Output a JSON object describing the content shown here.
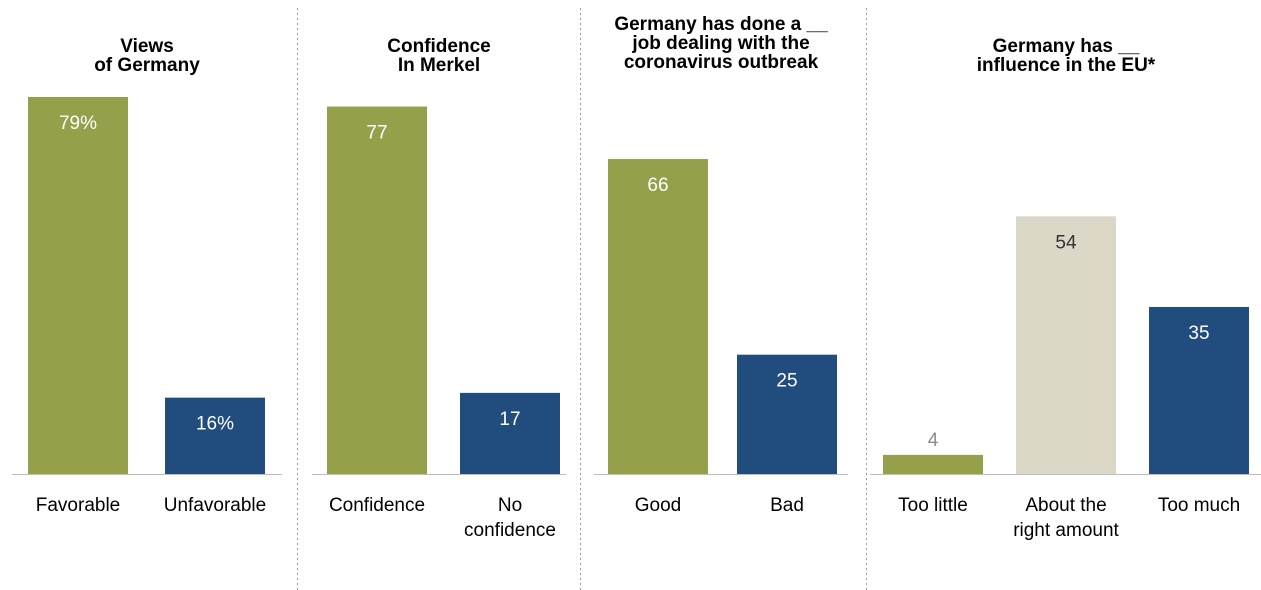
{
  "colors": {
    "green": "#96a04a",
    "blue": "#214d7e",
    "beige": "#dbd8c8",
    "label_on_dark": "#ffffff",
    "label_on_light": "#333333",
    "label_outside": "#8c8c8c"
  },
  "chart_data": [
    {
      "type": "bar",
      "title_lines": [
        "Views",
        "of Germany"
      ],
      "categories": [
        [
          "Favorable"
        ],
        [
          "Unfavorable"
        ]
      ],
      "values": [
        79,
        16
      ],
      "value_labels": [
        "79%",
        "16%"
      ],
      "bar_colors": [
        "green",
        "blue"
      ]
    },
    {
      "type": "bar",
      "title_lines": [
        "Confidence",
        "In Merkel"
      ],
      "categories": [
        [
          "Confidence"
        ],
        [
          "No",
          "confidence"
        ]
      ],
      "values": [
        77,
        17
      ],
      "value_labels": [
        "77",
        "17"
      ],
      "bar_colors": [
        "green",
        "blue"
      ]
    },
    {
      "type": "bar",
      "title_lines": [
        "Germany has done a __",
        "job dealing with the",
        "coronavirus outbreak"
      ],
      "categories": [
        [
          "Good"
        ],
        [
          "Bad"
        ]
      ],
      "values": [
        66,
        25
      ],
      "value_labels": [
        "66",
        "25"
      ],
      "bar_colors": [
        "green",
        "blue"
      ]
    },
    {
      "type": "bar",
      "title_lines": [
        "Germany has __",
        "influence in the EU*"
      ],
      "categories": [
        [
          "Too little"
        ],
        [
          "About the",
          "right amount"
        ],
        [
          "Too much"
        ]
      ],
      "values": [
        4,
        54,
        35
      ],
      "value_labels": [
        "4",
        "54",
        "35"
      ],
      "bar_colors": [
        "green",
        "beige",
        "blue"
      ]
    }
  ]
}
